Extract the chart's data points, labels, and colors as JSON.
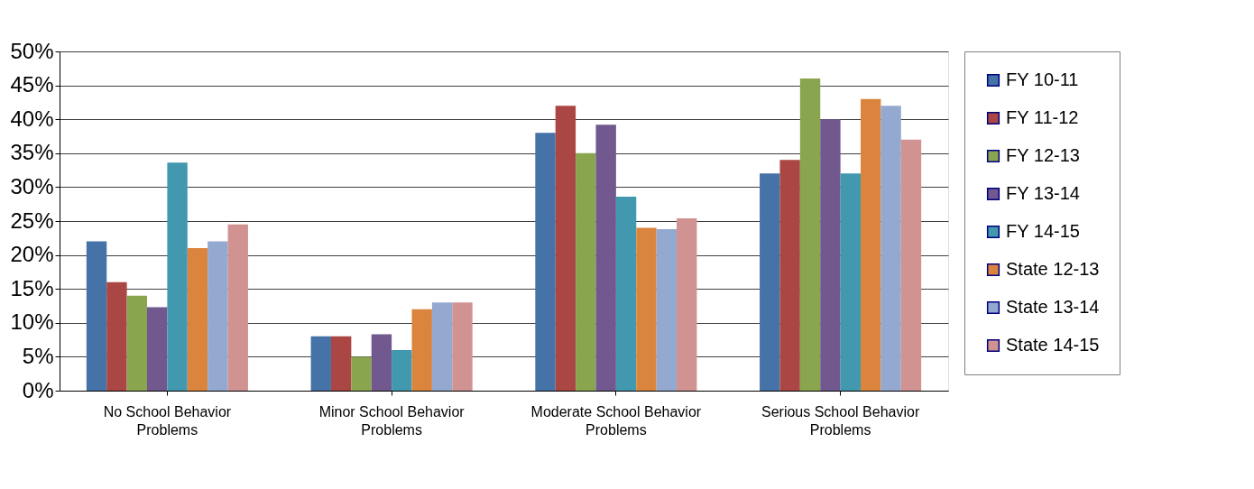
{
  "chart_data": {
    "type": "bar",
    "categories": [
      "No School Behavior Problems",
      "Minor School Behavior Problems",
      "Moderate School Behavior Problems",
      "Serious School Behavior Problems"
    ],
    "series": [
      {
        "name": "FY 10-11",
        "color": "#4572a7",
        "values": [
          22,
          8,
          38,
          32
        ]
      },
      {
        "name": "FY 11-12",
        "color": "#aa4643",
        "values": [
          16,
          8,
          42,
          34
        ]
      },
      {
        "name": "FY 12-13",
        "color": "#89a54e",
        "values": [
          14,
          5,
          35,
          46
        ]
      },
      {
        "name": "FY 13-14",
        "color": "#71588f",
        "values": [
          12.3,
          8.3,
          39.2,
          40
        ]
      },
      {
        "name": "FY 14-15",
        "color": "#4198af",
        "values": [
          33.6,
          6,
          28.6,
          32
        ]
      },
      {
        "name": "State 12-13",
        "color": "#db843d",
        "values": [
          21,
          12,
          24,
          43
        ]
      },
      {
        "name": "State 13-14",
        "color": "#93a9cf",
        "values": [
          22,
          13,
          23.8,
          42
        ]
      },
      {
        "name": "State 14-15",
        "color": "#d19392",
        "values": [
          24.5,
          13,
          25.4,
          37
        ]
      }
    ],
    "ylim": [
      0,
      50
    ],
    "yticks": [
      {
        "value": 0,
        "label": "0%"
      },
      {
        "value": 5,
        "label": "5%"
      },
      {
        "value": 10,
        "label": "10%"
      },
      {
        "value": 15,
        "label": "15%"
      },
      {
        "value": 20,
        "label": "20%"
      },
      {
        "value": 25,
        "label": "25%"
      },
      {
        "value": 30,
        "label": "30%"
      },
      {
        "value": 35,
        "label": "35%"
      },
      {
        "value": 40,
        "label": "40%"
      },
      {
        "value": 45,
        "label": "45%"
      },
      {
        "value": 50,
        "label": "50%"
      }
    ],
    "grid": "y",
    "legend": "right"
  }
}
